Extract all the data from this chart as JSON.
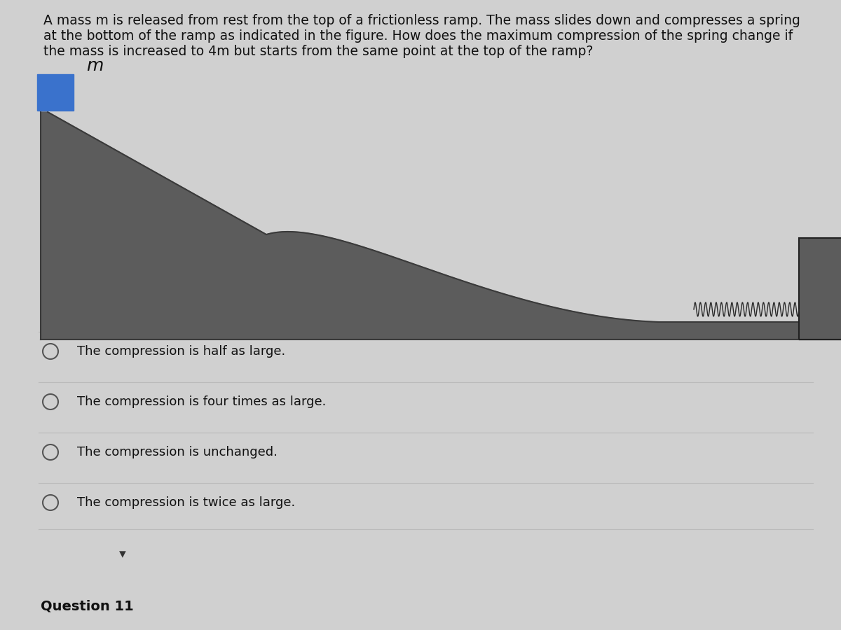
{
  "bg_color": "#d0d0d0",
  "question_text_line1": "A mass m is released from rest from the top of a frictionless ramp. The mass slides down and compresses a spring",
  "question_text_line2": "at the bottom of the ramp as indicated in the figure. How does the maximum compression of the spring change if",
  "question_text_line3": "the mass is increased to 4m but starts from the same point at the top of the ramp?",
  "question_fontsize": 13.5,
  "ramp_color": "#5c5c5c",
  "ramp_edge_color": "#3a3a3a",
  "mass_color": "#3a72cc",
  "wall_color": "#5c5c5c",
  "spring_color": "#2a2a2a",
  "options": [
    "The compression is half as large.",
    "The compression is four times as large.",
    "The compression is unchanged.",
    "The compression is twice as large."
  ],
  "options_fontsize": 13,
  "divider_color": "#bbbbbb",
  "footer_text": "Question 11",
  "footer_fontsize": 14,
  "circle_color": "#555555"
}
